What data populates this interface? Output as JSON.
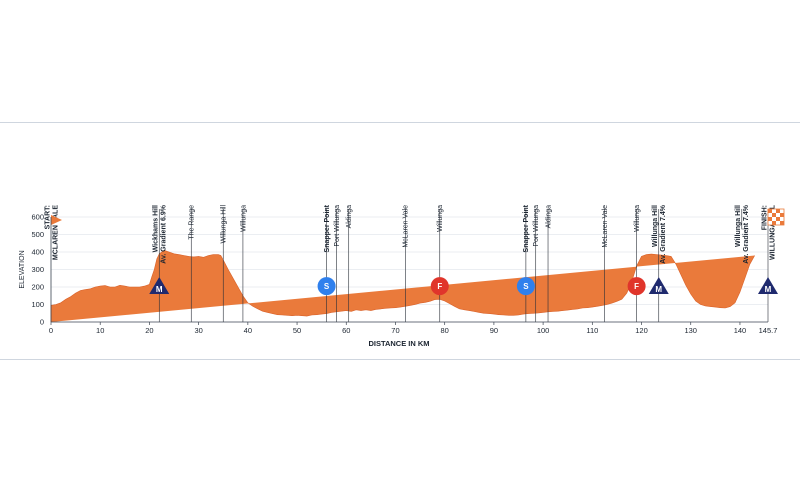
{
  "chart_data": {
    "type": "area",
    "title": "",
    "xlabel": "DISTANCE IN KM",
    "ylabel": "ELEVATION",
    "xlim": [
      0,
      145.7
    ],
    "ylim": [
      0,
      600
    ],
    "x_ticks": [
      0,
      10,
      20,
      30,
      40,
      50,
      60,
      70,
      80,
      90,
      100,
      110,
      120,
      130,
      140
    ],
    "x_end_tick": "145.7",
    "y_ticks": [
      0,
      100,
      200,
      300,
      400,
      500,
      600
    ],
    "fill_color": "#ea7a3b",
    "profile": {
      "x": [
        0,
        1,
        2,
        3,
        4,
        5,
        6,
        7,
        8,
        9,
        10,
        11,
        12,
        13,
        14,
        15,
        16,
        17,
        18,
        19,
        20,
        20.5,
        21,
        21.5,
        22,
        23,
        24,
        25,
        26,
        27,
        28,
        29,
        30,
        31,
        32,
        33,
        34,
        34.5,
        35,
        36,
        37,
        38,
        39,
        40,
        41,
        42,
        43,
        44,
        45,
        46,
        47,
        48,
        49,
        50,
        51,
        52,
        53,
        54,
        55,
        56,
        57,
        58,
        59,
        60,
        61,
        62,
        63,
        64,
        65,
        66,
        67,
        68,
        69,
        70,
        71,
        72,
        73,
        74,
        75,
        76,
        77,
        78,
        79,
        80,
        81,
        82,
        83,
        84,
        85,
        86,
        87,
        88,
        89,
        90,
        91,
        92,
        93,
        94,
        95,
        96,
        97,
        98,
        99,
        100,
        101,
        102,
        103,
        104,
        105,
        106,
        107,
        108,
        109,
        110,
        111,
        112,
        113,
        114,
        115,
        116,
        117,
        118,
        119,
        120,
        121,
        122,
        123,
        124,
        125,
        126,
        127,
        128,
        129,
        130,
        131,
        132,
        133,
        134,
        135,
        136,
        137,
        138,
        139,
        140,
        141,
        142,
        143,
        144,
        145,
        145.7
      ],
      "elevation": [
        95,
        100,
        110,
        130,
        145,
        165,
        180,
        185,
        190,
        200,
        205,
        208,
        200,
        200,
        210,
        205,
        200,
        200,
        200,
        205,
        215,
        260,
        300,
        360,
        390,
        410,
        400,
        390,
        385,
        380,
        375,
        372,
        375,
        370,
        380,
        385,
        385,
        380,
        355,
        300,
        250,
        200,
        150,
        110,
        90,
        75,
        62,
        55,
        48,
        42,
        40,
        38,
        36,
        38,
        36,
        34,
        40,
        42,
        45,
        48,
        55,
        58,
        62,
        65,
        60,
        70,
        65,
        70,
        65,
        72,
        75,
        78,
        80,
        82,
        85,
        90,
        95,
        100,
        108,
        112,
        118,
        128,
        130,
        120,
        105,
        90,
        75,
        70,
        65,
        60,
        55,
        50,
        48,
        45,
        42,
        40,
        38,
        38,
        40,
        45,
        48,
        50,
        52,
        55,
        58,
        60,
        62,
        65,
        68,
        72,
        75,
        80,
        82,
        85,
        90,
        95,
        100,
        108,
        118,
        130,
        165,
        230,
        320,
        375,
        385,
        388,
        385,
        382,
        380,
        375,
        330,
        270,
        210,
        160,
        120,
        100,
        92,
        88,
        85,
        82,
        80,
        88,
        110,
        170,
        250,
        330,
        380
      ]
    },
    "points": [
      {
        "km": 0,
        "label": "START:\nMCLAREN VALE",
        "bold": true,
        "flag": "start"
      },
      {
        "km": 22,
        "label": "Wickhams Hill\nAv. Gradient 6.9%",
        "bold": true,
        "badge": "M",
        "badge_elev": 200
      },
      {
        "km": 28.5,
        "label": "The Range"
      },
      {
        "km": 35,
        "label": "Willunga Hill"
      },
      {
        "km": 39,
        "label": "Willunga"
      },
      {
        "km": 56,
        "label": "Snapper Point",
        "bold": true,
        "badge": "S",
        "badge_elev": 205
      },
      {
        "km": 58,
        "label": "Port Willunga"
      },
      {
        "km": 60.5,
        "label": "Aldinga"
      },
      {
        "km": 72,
        "label": "McLaren Vale"
      },
      {
        "km": 79,
        "label": "Willunga",
        "badge": "F",
        "badge_elev": 205
      },
      {
        "km": 96.5,
        "label": "Snapper Point",
        "bold": true,
        "badge": "S",
        "badge_elev": 205
      },
      {
        "km": 98.5,
        "label": "Port Willunga"
      },
      {
        "km": 101,
        "label": "Aldinga"
      },
      {
        "km": 112.5,
        "label": "McLaren Vale"
      },
      {
        "km": 119,
        "label": "Willunga",
        "badge": "F",
        "badge_elev": 205
      },
      {
        "km": 123.5,
        "label": "Willunga Hill\nAv. Gradient 7.4%",
        "bold": true,
        "badge": "M",
        "badge_elev": 200
      },
      {
        "km": 145.7,
        "label": "FINISH:\nWILLUNGA HILL",
        "bold": true,
        "flag": "finish",
        "badge": "M",
        "badge_elev": 200
      },
      {
        "km": 142,
        "label": "Willunga Hill\nAv. Gradient 7.4%",
        "bold": true,
        "leader": true
      }
    ],
    "badge_colors": {
      "M": "#1f2a6e",
      "S": "#2f80ed",
      "F": "#e0352b"
    }
  }
}
